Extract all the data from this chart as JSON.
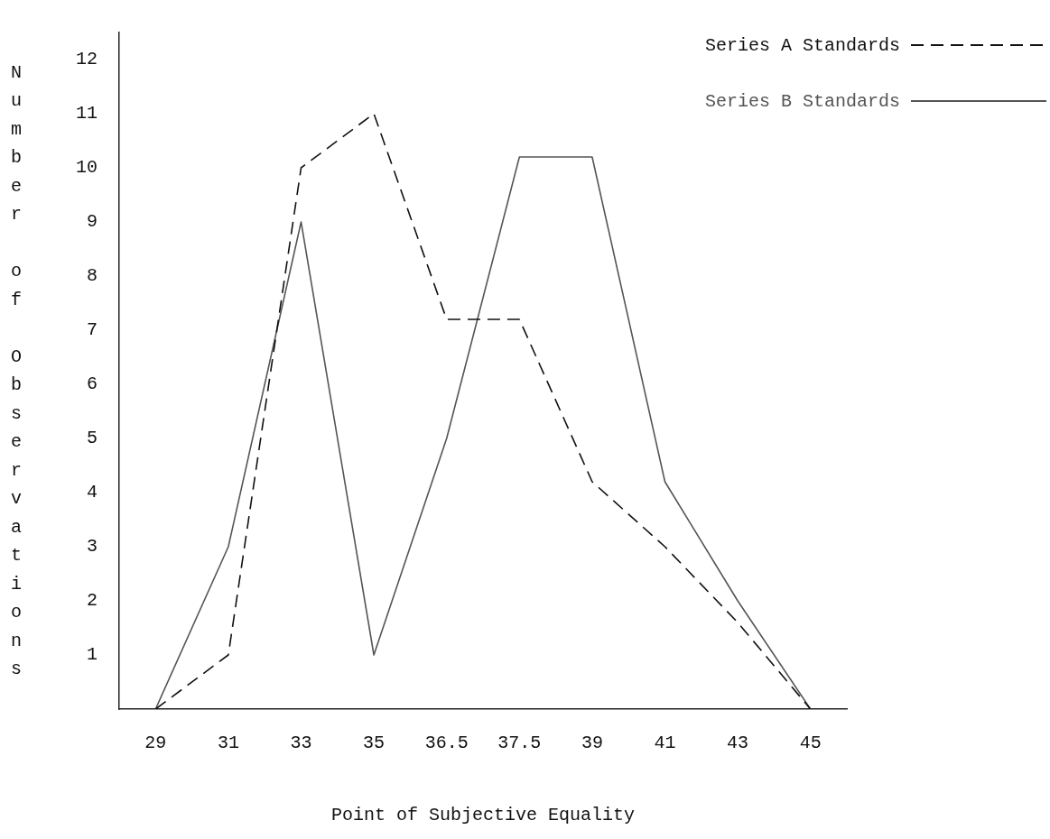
{
  "chart_data": {
    "type": "line",
    "xlabel": "Point of Subjective Equality",
    "ylabel": "Number of Observations",
    "categories": [
      "29",
      "31",
      "33",
      "35",
      "36.5",
      "37.5",
      "39",
      "41",
      "43",
      "45"
    ],
    "series": [
      {
        "name": "Series A Standards",
        "color": "#111111",
        "line_style": "dashed",
        "values": [
          0,
          1,
          10,
          11,
          7.2,
          7.2,
          4.2,
          3,
          1.6,
          0
        ]
      },
      {
        "name": "Series B Standards",
        "color": "#555555",
        "line_style": "solid",
        "values": [
          0,
          3,
          9,
          1,
          5,
          10.2,
          10.2,
          4.2,
          2,
          0
        ]
      }
    ],
    "ylim": [
      0,
      12.5
    ],
    "yticks": [
      1,
      2,
      3,
      4,
      5,
      6,
      7,
      8,
      9,
      10,
      11,
      12
    ],
    "grid": false,
    "legend": "top right",
    "marker": "none"
  }
}
